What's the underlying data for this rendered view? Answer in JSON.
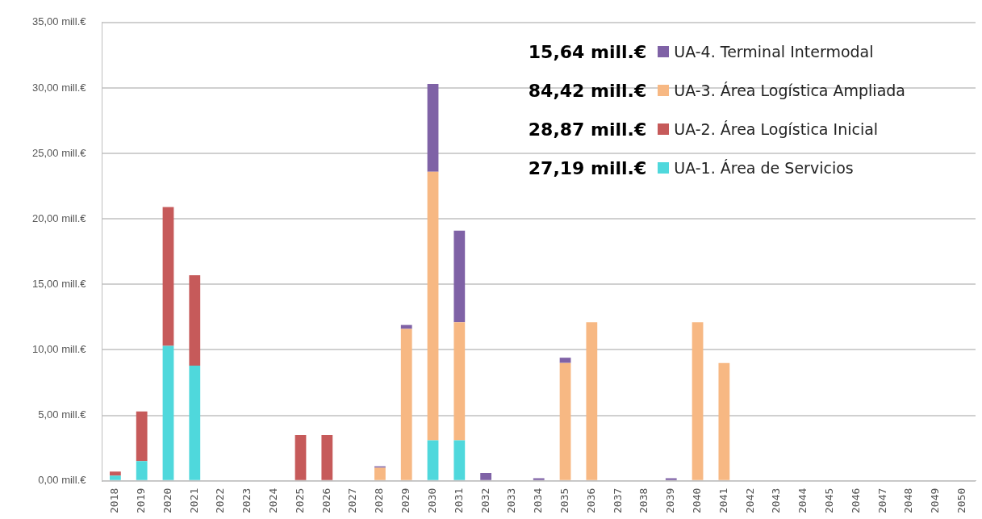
{
  "chart_data": {
    "type": "bar",
    "stacked": true,
    "categories": [
      "2018",
      "2019",
      "2020",
      "2021",
      "2022",
      "2023",
      "2024",
      "2025",
      "2026",
      "2027",
      "2028",
      "2029",
      "2030",
      "2031",
      "2032",
      "2033",
      "2034",
      "2035",
      "2036",
      "2037",
      "2038",
      "2039",
      "2040",
      "2041",
      "2042",
      "2043",
      "2044",
      "2045",
      "2046",
      "2047",
      "2048",
      "2049",
      "2050"
    ],
    "series": [
      {
        "name": "UA-1. Área de Servicios",
        "color": "#4fd8dc",
        "values": [
          0.4,
          1.5,
          10.3,
          8.8,
          null,
          null,
          null,
          null,
          null,
          null,
          null,
          null,
          3.1,
          3.1,
          null,
          null,
          null,
          null,
          null,
          null,
          null,
          null,
          null,
          null,
          null,
          null,
          null,
          null,
          null,
          null,
          null,
          null,
          null
        ]
      },
      {
        "name": "UA-2. Área Logística Inicial",
        "color": "#c65a5a",
        "values": [
          0.3,
          3.8,
          10.6,
          6.9,
          null,
          null,
          null,
          3.5,
          3.5,
          null,
          null,
          null,
          null,
          null,
          null,
          null,
          null,
          null,
          null,
          null,
          null,
          null,
          null,
          null,
          null,
          null,
          null,
          null,
          null,
          null,
          null,
          null,
          null
        ]
      },
      {
        "name": "UA-3. Área Logística Ampliada",
        "color": "#f7b883",
        "values": [
          null,
          null,
          null,
          null,
          null,
          null,
          null,
          null,
          null,
          null,
          1.0,
          11.6,
          20.5,
          9.0,
          null,
          null,
          null,
          9.0,
          12.1,
          null,
          null,
          null,
          12.1,
          9.0,
          null,
          null,
          null,
          null,
          null,
          null,
          null,
          null,
          null
        ]
      },
      {
        "name": "UA-4. Terminal Intermodal",
        "color": "#7f62a6",
        "values": [
          null,
          null,
          null,
          null,
          null,
          null,
          null,
          null,
          null,
          null,
          0.1,
          0.3,
          6.7,
          7.0,
          0.6,
          null,
          0.2,
          0.4,
          null,
          null,
          null,
          0.2,
          null,
          null,
          null,
          null,
          null,
          null,
          null,
          null,
          null,
          null,
          null
        ]
      }
    ],
    "ylim": [
      0,
      35
    ],
    "yticks": [
      {
        "value": 0,
        "label": "0,00 mill.€"
      },
      {
        "value": 5,
        "label": "5,00 mill.€"
      },
      {
        "value": 10,
        "label": "10,00 mill.€"
      },
      {
        "value": 15,
        "label": "15,00 mill.€"
      },
      {
        "value": 20,
        "label": "20,00 mill.€"
      },
      {
        "value": 25,
        "label": "25,00 mill.€"
      },
      {
        "value": 30,
        "label": "30,00 mill.€"
      },
      {
        "value": 35,
        "label": "35,00 mill.€"
      }
    ],
    "grid": "y",
    "legend": "top right",
    "annotations": [
      "15,64 mill.€",
      "84,42 mill.€",
      "28,87 mill.€",
      "27,19 mill.€"
    ]
  }
}
